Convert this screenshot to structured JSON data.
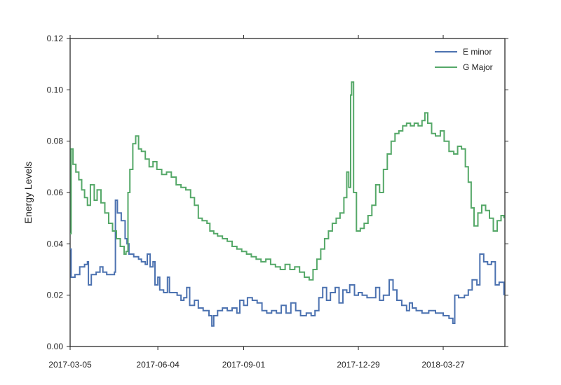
{
  "chart_data": {
    "type": "line",
    "title": "",
    "xlabel": "",
    "ylabel": "Energy Levels",
    "x_range": [
      "2017-03-05",
      "2018-05-30"
    ],
    "ylim": [
      0.0,
      0.12
    ],
    "y_ticks": [
      "0.00",
      "0.02",
      "0.04",
      "0.06",
      "0.08",
      "0.10",
      "0.12"
    ],
    "x_ticks": [
      "2017-03-05",
      "2017-06-04",
      "2017-09-01",
      "2017-12-29",
      "2018-03-27"
    ],
    "grid": false,
    "legend_position": "top-right",
    "series": [
      {
        "name": "E minor",
        "color": "#4c72b0",
        "points": [
          [
            "2017-03-05",
            0.038
          ],
          [
            "2017-03-06",
            0.027
          ],
          [
            "2017-03-10",
            0.028
          ],
          [
            "2017-03-15",
            0.031
          ],
          [
            "2017-03-20",
            0.032
          ],
          [
            "2017-03-23",
            0.033
          ],
          [
            "2017-03-24",
            0.024
          ],
          [
            "2017-03-27",
            0.028
          ],
          [
            "2017-04-01",
            0.029
          ],
          [
            "2017-04-05",
            0.031
          ],
          [
            "2017-04-08",
            0.029
          ],
          [
            "2017-04-12",
            0.028
          ],
          [
            "2017-04-18",
            0.028
          ],
          [
            "2017-04-20",
            0.029
          ],
          [
            "2017-04-21",
            0.057
          ],
          [
            "2017-04-23",
            0.052
          ],
          [
            "2017-04-27",
            0.049
          ],
          [
            "2017-05-01",
            0.042
          ],
          [
            "2017-05-03",
            0.04
          ],
          [
            "2017-05-05",
            0.036
          ],
          [
            "2017-05-10",
            0.035
          ],
          [
            "2017-05-15",
            0.034
          ],
          [
            "2017-05-18",
            0.033
          ],
          [
            "2017-05-22",
            0.032
          ],
          [
            "2017-05-24",
            0.036
          ],
          [
            "2017-05-27",
            0.031
          ],
          [
            "2017-05-30",
            0.033
          ],
          [
            "2017-06-01",
            0.024
          ],
          [
            "2017-06-04",
            0.027
          ],
          [
            "2017-06-06",
            0.022
          ],
          [
            "2017-06-10",
            0.021
          ],
          [
            "2017-06-14",
            0.027
          ],
          [
            "2017-06-16",
            0.021
          ],
          [
            "2017-06-20",
            0.021
          ],
          [
            "2017-06-24",
            0.02
          ],
          [
            "2017-06-28",
            0.018
          ],
          [
            "2017-07-01",
            0.019
          ],
          [
            "2017-07-04",
            0.023
          ],
          [
            "2017-07-07",
            0.016
          ],
          [
            "2017-07-12",
            0.018
          ],
          [
            "2017-07-16",
            0.015
          ],
          [
            "2017-07-21",
            0.014
          ],
          [
            "2017-07-27",
            0.012
          ],
          [
            "2017-07-30",
            0.008
          ],
          [
            "2017-08-01",
            0.012
          ],
          [
            "2017-08-05",
            0.014
          ],
          [
            "2017-08-10",
            0.015
          ],
          [
            "2017-08-15",
            0.014
          ],
          [
            "2017-08-20",
            0.015
          ],
          [
            "2017-08-25",
            0.013
          ],
          [
            "2017-08-28",
            0.018
          ],
          [
            "2017-09-01",
            0.016
          ],
          [
            "2017-09-05",
            0.019
          ],
          [
            "2017-09-10",
            0.018
          ],
          [
            "2017-09-15",
            0.017
          ],
          [
            "2017-09-20",
            0.014
          ],
          [
            "2017-09-25",
            0.013
          ],
          [
            "2017-09-30",
            0.014
          ],
          [
            "2017-10-05",
            0.013
          ],
          [
            "2017-10-10",
            0.016
          ],
          [
            "2017-10-15",
            0.013
          ],
          [
            "2017-10-20",
            0.017
          ],
          [
            "2017-10-25",
            0.014
          ],
          [
            "2017-10-30",
            0.012
          ],
          [
            "2017-11-05",
            0.013
          ],
          [
            "2017-11-10",
            0.012
          ],
          [
            "2017-11-14",
            0.014
          ],
          [
            "2017-11-18",
            0.019
          ],
          [
            "2017-11-22",
            0.023
          ],
          [
            "2017-11-26",
            0.018
          ],
          [
            "2017-11-30",
            0.021
          ],
          [
            "2017-12-05",
            0.023
          ],
          [
            "2017-12-09",
            0.017
          ],
          [
            "2017-12-13",
            0.022
          ],
          [
            "2017-12-17",
            0.021
          ],
          [
            "2017-12-20",
            0.024
          ],
          [
            "2017-12-25",
            0.02
          ],
          [
            "2017-12-29",
            0.021
          ],
          [
            "2018-01-02",
            0.02
          ],
          [
            "2018-01-07",
            0.019
          ],
          [
            "2018-01-12",
            0.019
          ],
          [
            "2018-01-16",
            0.023
          ],
          [
            "2018-01-20",
            0.018
          ],
          [
            "2018-01-24",
            0.02
          ],
          [
            "2018-01-30",
            0.026
          ],
          [
            "2018-02-03",
            0.022
          ],
          [
            "2018-02-07",
            0.018
          ],
          [
            "2018-02-12",
            0.016
          ],
          [
            "2018-02-17",
            0.014
          ],
          [
            "2018-02-20",
            0.017
          ],
          [
            "2018-02-23",
            0.015
          ],
          [
            "2018-02-27",
            0.014
          ],
          [
            "2018-03-05",
            0.013
          ],
          [
            "2018-03-12",
            0.014
          ],
          [
            "2018-03-19",
            0.013
          ],
          [
            "2018-03-27",
            0.012
          ],
          [
            "2018-04-02",
            0.011
          ],
          [
            "2018-04-06",
            0.009
          ],
          [
            "2018-04-08",
            0.02
          ],
          [
            "2018-04-12",
            0.019
          ],
          [
            "2018-04-18",
            0.02
          ],
          [
            "2018-04-22",
            0.022
          ],
          [
            "2018-04-26",
            0.026
          ],
          [
            "2018-05-01",
            0.024
          ],
          [
            "2018-05-04",
            0.036
          ],
          [
            "2018-05-08",
            0.033
          ],
          [
            "2018-05-12",
            0.032
          ],
          [
            "2018-05-16",
            0.033
          ],
          [
            "2018-05-20",
            0.024
          ],
          [
            "2018-05-24",
            0.025
          ],
          [
            "2018-05-29",
            0.02
          ]
        ]
      },
      {
        "name": "G Major",
        "color": "#55a868",
        "points": [
          [
            "2017-03-05",
            0.044
          ],
          [
            "2017-03-06",
            0.077
          ],
          [
            "2017-03-08",
            0.071
          ],
          [
            "2017-03-11",
            0.068
          ],
          [
            "2017-03-14",
            0.065
          ],
          [
            "2017-03-17",
            0.061
          ],
          [
            "2017-03-20",
            0.058
          ],
          [
            "2017-03-23",
            0.055
          ],
          [
            "2017-03-26",
            0.063
          ],
          [
            "2017-03-30",
            0.057
          ],
          [
            "2017-04-02",
            0.061
          ],
          [
            "2017-04-06",
            0.056
          ],
          [
            "2017-04-10",
            0.052
          ],
          [
            "2017-04-14",
            0.048
          ],
          [
            "2017-04-18",
            0.045
          ],
          [
            "2017-04-22",
            0.042
          ],
          [
            "2017-04-26",
            0.039
          ],
          [
            "2017-04-30",
            0.036
          ],
          [
            "2017-05-02",
            0.037
          ],
          [
            "2017-05-04",
            0.06
          ],
          [
            "2017-05-06",
            0.069
          ],
          [
            "2017-05-09",
            0.079
          ],
          [
            "2017-05-12",
            0.082
          ],
          [
            "2017-05-15",
            0.077
          ],
          [
            "2017-05-18",
            0.076
          ],
          [
            "2017-05-22",
            0.073
          ],
          [
            "2017-05-26",
            0.07
          ],
          [
            "2017-05-30",
            0.072
          ],
          [
            "2017-06-03",
            0.069
          ],
          [
            "2017-06-08",
            0.067
          ],
          [
            "2017-06-13",
            0.068
          ],
          [
            "2017-06-18",
            0.066
          ],
          [
            "2017-06-23",
            0.063
          ],
          [
            "2017-06-28",
            0.062
          ],
          [
            "2017-07-03",
            0.061
          ],
          [
            "2017-07-08",
            0.058
          ],
          [
            "2017-07-12",
            0.055
          ],
          [
            "2017-07-16",
            0.05
          ],
          [
            "2017-07-20",
            0.049
          ],
          [
            "2017-07-25",
            0.048
          ],
          [
            "2017-07-28",
            0.045
          ],
          [
            "2017-08-01",
            0.044
          ],
          [
            "2017-08-05",
            0.043
          ],
          [
            "2017-08-10",
            0.042
          ],
          [
            "2017-08-15",
            0.041
          ],
          [
            "2017-08-20",
            0.039
          ],
          [
            "2017-08-25",
            0.038
          ],
          [
            "2017-08-30",
            0.037
          ],
          [
            "2017-09-04",
            0.036
          ],
          [
            "2017-09-09",
            0.035
          ],
          [
            "2017-09-14",
            0.034
          ],
          [
            "2017-09-19",
            0.033
          ],
          [
            "2017-09-24",
            0.034
          ],
          [
            "2017-09-29",
            0.032
          ],
          [
            "2017-10-04",
            0.031
          ],
          [
            "2017-10-09",
            0.03
          ],
          [
            "2017-10-14",
            0.032
          ],
          [
            "2017-10-19",
            0.03
          ],
          [
            "2017-10-24",
            0.031
          ],
          [
            "2017-10-29",
            0.029
          ],
          [
            "2017-11-03",
            0.027
          ],
          [
            "2017-11-08",
            0.026
          ],
          [
            "2017-11-12",
            0.03
          ],
          [
            "2017-11-16",
            0.034
          ],
          [
            "2017-11-20",
            0.038
          ],
          [
            "2017-11-24",
            0.042
          ],
          [
            "2017-11-28",
            0.045
          ],
          [
            "2017-12-02",
            0.048
          ],
          [
            "2017-12-06",
            0.05
          ],
          [
            "2017-12-10",
            0.052
          ],
          [
            "2017-12-14",
            0.058
          ],
          [
            "2017-12-17",
            0.068
          ],
          [
            "2017-12-19",
            0.062
          ],
          [
            "2017-12-21",
            0.098
          ],
          [
            "2017-12-22",
            0.103
          ],
          [
            "2017-12-24",
            0.06
          ],
          [
            "2017-12-27",
            0.045
          ],
          [
            "2017-12-31",
            0.046
          ],
          [
            "2018-01-04",
            0.048
          ],
          [
            "2018-01-08",
            0.051
          ],
          [
            "2018-01-12",
            0.055
          ],
          [
            "2018-01-16",
            0.063
          ],
          [
            "2018-01-20",
            0.06
          ],
          [
            "2018-01-24",
            0.069
          ],
          [
            "2018-01-28",
            0.075
          ],
          [
            "2018-02-01",
            0.08
          ],
          [
            "2018-02-05",
            0.083
          ],
          [
            "2018-02-09",
            0.084
          ],
          [
            "2018-02-13",
            0.086
          ],
          [
            "2018-02-17",
            0.087
          ],
          [
            "2018-02-21",
            0.086
          ],
          [
            "2018-02-25",
            0.087
          ],
          [
            "2018-03-01",
            0.086
          ],
          [
            "2018-03-05",
            0.088
          ],
          [
            "2018-03-08",
            0.091
          ],
          [
            "2018-03-11",
            0.087
          ],
          [
            "2018-03-15",
            0.083
          ],
          [
            "2018-03-19",
            0.082
          ],
          [
            "2018-03-24",
            0.084
          ],
          [
            "2018-03-28",
            0.08
          ],
          [
            "2018-04-02",
            0.076
          ],
          [
            "2018-04-07",
            0.075
          ],
          [
            "2018-04-11",
            0.078
          ],
          [
            "2018-04-15",
            0.077
          ],
          [
            "2018-04-19",
            0.07
          ],
          [
            "2018-04-22",
            0.064
          ],
          [
            "2018-04-25",
            0.054
          ],
          [
            "2018-04-28",
            0.047
          ],
          [
            "2018-05-02",
            0.052
          ],
          [
            "2018-05-06",
            0.055
          ],
          [
            "2018-05-10",
            0.053
          ],
          [
            "2018-05-14",
            0.05
          ],
          [
            "2018-05-18",
            0.045
          ],
          [
            "2018-05-22",
            0.049
          ],
          [
            "2018-05-26",
            0.051
          ],
          [
            "2018-05-29",
            0.05
          ]
        ]
      }
    ]
  }
}
